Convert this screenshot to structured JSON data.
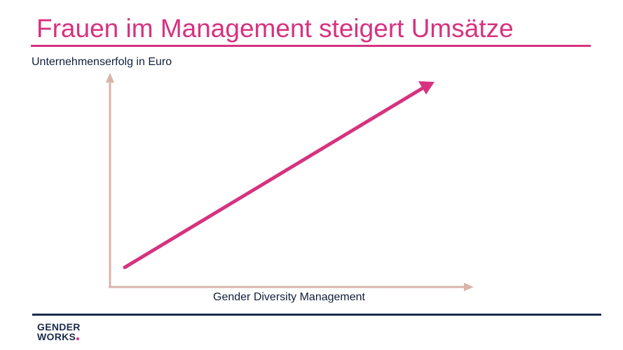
{
  "title": "Frauen im Management steigert Umsätze",
  "diagram": {
    "y_axis_label": "Unternehmenserfolg in Euro",
    "x_axis_label": "Gender Diversity Management",
    "trend": "increasing"
  },
  "logo": {
    "line1": "GENDER",
    "line2": "WORKS"
  },
  "colors": {
    "accent": "#d6327f",
    "axis": "#d9b4a8",
    "navy": "#1a2b4c",
    "text": "#0f1e3a"
  }
}
